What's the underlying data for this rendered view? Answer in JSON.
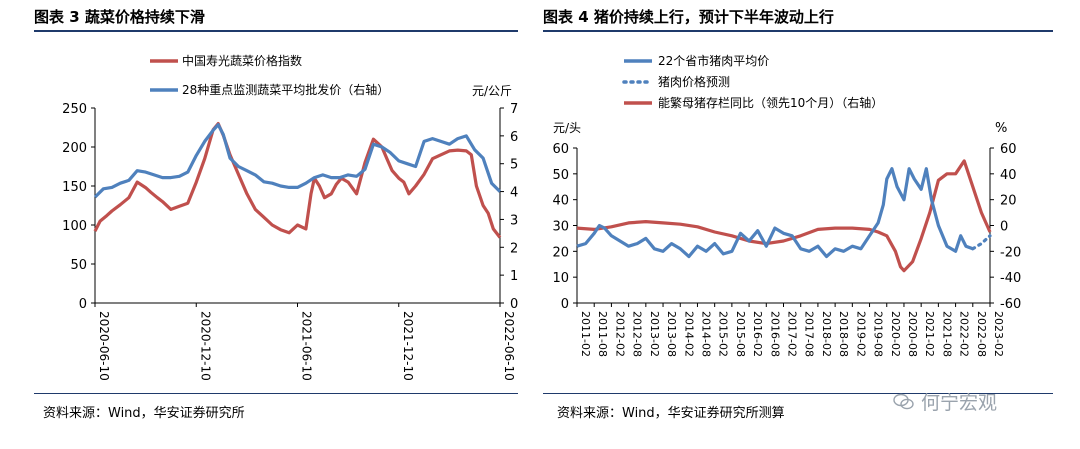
{
  "left_panel": {
    "title": "图表 3  蔬菜价格持续下滑",
    "source": "资料来源：Wind，华安证券研究所"
  },
  "right_panel": {
    "title": "图表 4  猪价持续上行，预计下半年波动上行",
    "source": "资料来源：Wind，华安证券研究所测算"
  },
  "watermark": "何宁宏观",
  "colors": {
    "red": "#c0504d",
    "blue": "#4f81bd",
    "navy": "#1f3a6b"
  },
  "chart_data": [
    {
      "type": "line",
      "title": "蔬菜价格持续下滑",
      "y_left": {
        "ylim": [
          0,
          250
        ],
        "ticks": [
          0,
          50,
          100,
          150,
          200,
          250
        ]
      },
      "y_right": {
        "ylim": [
          0,
          7
        ],
        "ticks": [
          0,
          1,
          2,
          3,
          4,
          5,
          6,
          7
        ],
        "label": "元/公斤"
      },
      "x_ticks": [
        "2020-06-10",
        "2020-12-10",
        "2021-06-10",
        "2021-12-10",
        "2022-06-10"
      ],
      "x_range": [
        0,
        24
      ],
      "legend": [
        "中国寿光蔬菜价格指数",
        "28种重点监测蔬菜平均批发价（右轴）"
      ],
      "series": [
        {
          "name": "中国寿光蔬菜价格指数",
          "axis": "left",
          "color": "#c0504d",
          "x": [
            0,
            0.3,
            0.7,
            1,
            1.5,
            2,
            2.5,
            3,
            3.3,
            3.7,
            4,
            4.5,
            5,
            5.5,
            6,
            6.5,
            7,
            7.3,
            7.6,
            8,
            8.5,
            9,
            9.5,
            10,
            10.5,
            11,
            11.5,
            12,
            12.5,
            12.8,
            13,
            13.3,
            13.6,
            14,
            14.3,
            14.6,
            15,
            15.5,
            16,
            16.5,
            17,
            17.3,
            17.6,
            18,
            18.3,
            18.6,
            19,
            19.5,
            20,
            20.5,
            21,
            21.5,
            22,
            22.3,
            22.6,
            23,
            23.3,
            23.6,
            24
          ],
          "y": [
            92,
            105,
            112,
            118,
            126,
            135,
            155,
            148,
            142,
            135,
            130,
            120,
            124,
            128,
            155,
            185,
            222,
            230,
            215,
            190,
            165,
            140,
            120,
            110,
            100,
            94,
            90,
            100,
            95,
            140,
            160,
            150,
            135,
            140,
            152,
            160,
            155,
            140,
            180,
            210,
            200,
            185,
            170,
            160,
            155,
            140,
            150,
            165,
            185,
            190,
            195,
            196,
            195,
            190,
            150,
            125,
            115,
            95,
            84
          ]
        },
        {
          "name": "28种重点监测蔬菜平均批发价",
          "axis": "right",
          "color": "#4f81bd",
          "x": [
            0,
            0.5,
            1,
            1.5,
            2,
            2.5,
            3,
            3.5,
            4,
            4.5,
            5,
            5.5,
            6,
            6.5,
            7,
            7.3,
            7.6,
            8,
            8.5,
            9,
            9.5,
            10,
            10.5,
            11,
            11.5,
            12,
            12.5,
            13,
            13.5,
            14,
            14.5,
            15,
            15.5,
            16,
            16.5,
            17,
            17.5,
            18,
            18.5,
            19,
            19.5,
            20,
            20.5,
            21,
            21.5,
            22,
            22.5,
            23,
            23.5,
            24
          ],
          "y": [
            3.8,
            4.1,
            4.15,
            4.3,
            4.4,
            4.75,
            4.7,
            4.6,
            4.5,
            4.5,
            4.55,
            4.7,
            5.3,
            5.8,
            6.2,
            6.4,
            6.05,
            5.2,
            4.9,
            4.75,
            4.6,
            4.35,
            4.3,
            4.2,
            4.15,
            4.15,
            4.3,
            4.5,
            4.6,
            4.5,
            4.5,
            4.6,
            4.55,
            4.8,
            5.7,
            5.6,
            5.4,
            5.1,
            5.0,
            4.9,
            5.8,
            5.9,
            5.8,
            5.7,
            5.9,
            6.0,
            5.5,
            5.2,
            4.3,
            4.0
          ]
        }
      ]
    },
    {
      "type": "line",
      "title": "猪价持续上行，预计下半年波动上行",
      "y_left": {
        "ylim": [
          0,
          60
        ],
        "ticks": [
          0,
          10,
          20,
          30,
          40,
          50,
          60
        ],
        "label": "元/头"
      },
      "y_right": {
        "ylim": [
          -60,
          60
        ],
        "ticks": [
          -60,
          -40,
          -20,
          0,
          20,
          40,
          60
        ],
        "label": "%"
      },
      "x_ticks": [
        "2011-02",
        "2011-08",
        "2012-02",
        "2012-08",
        "2013-02",
        "2013-08",
        "2014-02",
        "2014-08",
        "2015-02",
        "2015-08",
        "2016-02",
        "2016-08",
        "2017-02",
        "2017-08",
        "2018-02",
        "2018-08",
        "2019-02",
        "2019-08",
        "2020-02",
        "2020-08",
        "2021-02",
        "2021-08",
        "2022-02",
        "2022-08",
        "2023-02"
      ],
      "x_range": [
        0,
        24
      ],
      "legend": [
        "22个省市猪肉平均价",
        "猪肉价格预测",
        "能繁母猪存栏同比（领先10个月）（右轴）"
      ],
      "series": [
        {
          "name": "22个省市猪肉平均价",
          "axis": "left",
          "color": "#4f81bd",
          "x": [
            0,
            0.5,
            1,
            1.3,
            1.6,
            2,
            2.5,
            3,
            3.5,
            4,
            4.5,
            5,
            5.5,
            6,
            6.5,
            7,
            7.5,
            8,
            8.5,
            9,
            9.5,
            10,
            10.5,
            11,
            11.5,
            12,
            12.5,
            13,
            13.5,
            14,
            14.5,
            15,
            15.5,
            16,
            16.5,
            17,
            17.5,
            17.8,
            18,
            18.3,
            18.6,
            19,
            19.3,
            19.6,
            20,
            20.3,
            20.6,
            21,
            21.5,
            22,
            22.3,
            22.6,
            23
          ],
          "y": [
            22,
            23,
            27,
            30,
            29,
            26,
            24,
            22,
            23,
            25,
            21,
            20,
            23,
            21,
            18,
            22,
            20,
            23,
            19,
            20,
            27,
            24,
            28,
            22,
            29,
            27,
            26,
            21,
            20,
            22,
            18,
            21,
            20,
            22,
            21,
            26,
            31,
            38,
            48,
            52,
            45,
            40,
            52,
            48,
            44,
            52,
            40,
            30,
            22,
            20,
            26,
            22,
            21
          ]
        },
        {
          "name": "猪肉价格预测",
          "axis": "left",
          "color": "#4f81bd",
          "dashed": true,
          "x": [
            23,
            23.5,
            24
          ],
          "y": [
            21,
            23,
            26
          ]
        },
        {
          "name": "能繁母猪存栏同比（领先10个月）",
          "axis": "right",
          "color": "#c0504d",
          "x": [
            0,
            1,
            2,
            3,
            4,
            5,
            6,
            7,
            8,
            9,
            10,
            11,
            12,
            13,
            14,
            15,
            16,
            17,
            17.5,
            18,
            18.5,
            18.8,
            19,
            19.5,
            20,
            20.5,
            21,
            21.5,
            22,
            22.5,
            23,
            23.5,
            24
          ],
          "y": [
            -2,
            -3,
            -1,
            2,
            3,
            2,
            1,
            -1,
            -5,
            -8,
            -12,
            -14,
            -12,
            -8,
            -3,
            -2,
            -2,
            -3,
            -5,
            -8,
            -20,
            -32,
            -35,
            -28,
            -10,
            10,
            35,
            40,
            40,
            50,
            30,
            10,
            -5
          ]
        }
      ]
    }
  ]
}
